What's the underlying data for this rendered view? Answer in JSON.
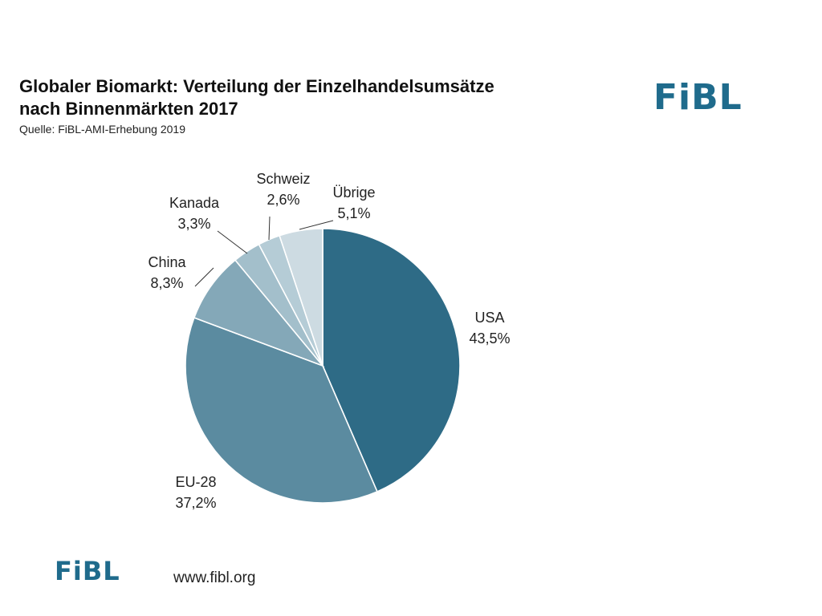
{
  "title_line1": "Globaler Biomarkt: Verteilung der Einzelhandelsumsätze",
  "title_line2": "nach Binnenmärkten 2017",
  "source": "Quelle: FiBL-AMI-Erhebung 2019",
  "logo_text": "FiBL",
  "url": "www.fibl.org",
  "colors": {
    "brand": "#1f6b8c"
  },
  "chart_data": {
    "type": "pie",
    "start_at": "12 o'clock",
    "direction": "clockwise",
    "slices": [
      {
        "label": "USA",
        "value": 43.5,
        "value_label": "43,5%",
        "color": "#2e6b86"
      },
      {
        "label": "EU-28",
        "value": 37.2,
        "value_label": "37,2%",
        "color": "#5b8ba0"
      },
      {
        "label": "China",
        "value": 8.3,
        "value_label": "8,3%",
        "color": "#84a8b8"
      },
      {
        "label": "Kanada",
        "value": 3.3,
        "value_label": "3,3%",
        "color": "#a3bfcb"
      },
      {
        "label": "Schweiz",
        "value": 2.6,
        "value_label": "2,6%",
        "color": "#b5ccd6"
      },
      {
        "label": "Übrige",
        "value": 5.1,
        "value_label": "5,1%",
        "color": "#cddbe2"
      }
    ]
  }
}
